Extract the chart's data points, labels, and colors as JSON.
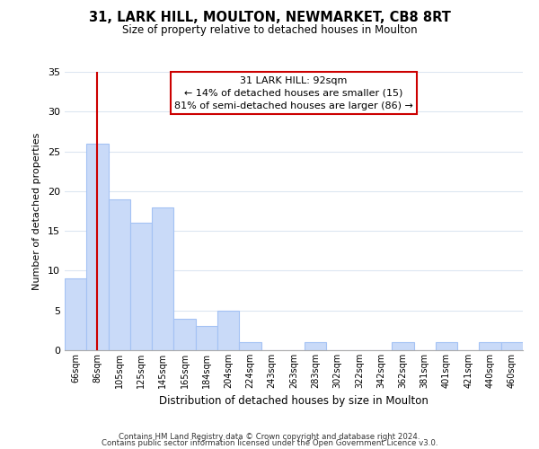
{
  "title": "31, LARK HILL, MOULTON, NEWMARKET, CB8 8RT",
  "subtitle": "Size of property relative to detached houses in Moulton",
  "xlabel": "Distribution of detached houses by size in Moulton",
  "ylabel": "Number of detached properties",
  "bar_labels": [
    "66sqm",
    "86sqm",
    "105sqm",
    "125sqm",
    "145sqm",
    "165sqm",
    "184sqm",
    "204sqm",
    "224sqm",
    "243sqm",
    "263sqm",
    "283sqm",
    "302sqm",
    "322sqm",
    "342sqm",
    "362sqm",
    "381sqm",
    "401sqm",
    "421sqm",
    "440sqm",
    "460sqm"
  ],
  "bar_values": [
    9,
    26,
    19,
    16,
    18,
    4,
    3,
    5,
    1,
    0,
    0,
    1,
    0,
    0,
    0,
    1,
    0,
    1,
    0,
    1,
    1
  ],
  "bar_color": "#c9daf8",
  "bar_edge_color": "#a4c2f4",
  "vline_x": 1.0,
  "vline_color": "#cc0000",
  "annotation_line1": "31 LARK HILL: 92sqm",
  "annotation_line2": "← 14% of detached houses are smaller (15)",
  "annotation_line3": "81% of semi-detached houses are larger (86) →",
  "annotation_box_edge_color": "#cc0000",
  "ylim": [
    0,
    35
  ],
  "yticks": [
    0,
    5,
    10,
    15,
    20,
    25,
    30,
    35
  ],
  "footer_line1": "Contains HM Land Registry data © Crown copyright and database right 2024.",
  "footer_line2": "Contains public sector information licensed under the Open Government Licence v3.0.",
  "background_color": "#ffffff",
  "grid_color": "#dce6f1"
}
